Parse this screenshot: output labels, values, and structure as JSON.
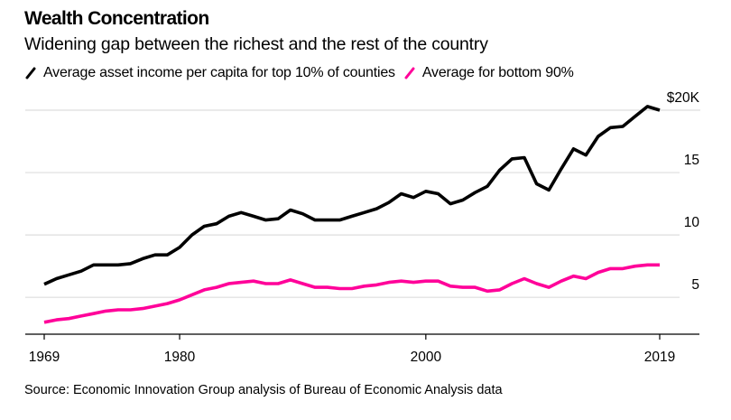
{
  "header": {
    "title": "Wealth Concentration",
    "subtitle": "Widening gap between the richest and the rest of the country"
  },
  "legend": [
    {
      "label": "Average asset income per capita for top 10% of counties",
      "color": "#000000",
      "icon": "line-swatch-icon"
    },
    {
      "label": "Average for bottom 90%",
      "color": "#ff0099",
      "icon": "line-swatch-icon"
    }
  ],
  "footer": {
    "source": "Source: Economic Innovation Group analysis of Bureau of Economic Analysis data"
  },
  "chart_data": {
    "type": "line",
    "title": "Wealth Concentration",
    "subtitle": "Widening gap between the richest and the rest of the country",
    "xlabel": "",
    "ylabel": "",
    "x": [
      1969,
      1970,
      1971,
      1972,
      1973,
      1974,
      1975,
      1976,
      1977,
      1978,
      1979,
      1980,
      1981,
      1982,
      1983,
      1984,
      1985,
      1986,
      1987,
      1988,
      1989,
      1990,
      1991,
      1992,
      1993,
      1994,
      1995,
      1996,
      1997,
      1998,
      1999,
      2000,
      2001,
      2002,
      2003,
      2004,
      2005,
      2006,
      2007,
      2008,
      2009,
      2010,
      2011,
      2012,
      2013,
      2014,
      2015,
      2016,
      2017,
      2018,
      2019
    ],
    "xlim": [
      1969,
      2019
    ],
    "x_ticks": [
      1969,
      1980,
      2000,
      2019
    ],
    "x_tick_labels": [
      "1969",
      "1980",
      "2000",
      "2019"
    ],
    "ylim": [
      2.1,
      21
    ],
    "y_ticks": [
      5,
      10,
      15,
      20
    ],
    "y_tick_labels": [
      "5",
      "10",
      "15",
      "$20K"
    ],
    "y_axis_side": "right",
    "grid": true,
    "legend_position": "top-left",
    "series": [
      {
        "name": "Average asset income per capita for top 10% of counties",
        "color": "#000000",
        "values": [
          6.05,
          6.5,
          6.8,
          7.1,
          7.6,
          7.6,
          7.6,
          7.7,
          8.1,
          8.4,
          8.4,
          9.0,
          10.0,
          10.7,
          10.9,
          11.5,
          11.8,
          11.5,
          11.2,
          11.3,
          12.0,
          11.7,
          11.2,
          11.2,
          11.2,
          11.5,
          11.8,
          12.1,
          12.6,
          13.3,
          13.0,
          13.5,
          13.3,
          12.5,
          12.8,
          13.4,
          13.9,
          15.2,
          16.1,
          16.2,
          14.1,
          13.6,
          15.3,
          16.9,
          16.4,
          17.9,
          18.6,
          18.7,
          19.5,
          20.3,
          20.0
        ]
      },
      {
        "name": "Average for bottom 90%",
        "color": "#ff0099",
        "values": [
          3.0,
          3.2,
          3.3,
          3.5,
          3.7,
          3.9,
          4.0,
          4.0,
          4.1,
          4.3,
          4.5,
          4.8,
          5.2,
          5.6,
          5.8,
          6.1,
          6.2,
          6.3,
          6.1,
          6.1,
          6.4,
          6.1,
          5.8,
          5.8,
          5.7,
          5.7,
          5.9,
          6.0,
          6.2,
          6.3,
          6.2,
          6.3,
          6.3,
          5.9,
          5.8,
          5.8,
          5.5,
          5.6,
          6.1,
          6.5,
          6.1,
          5.8,
          6.3,
          6.7,
          6.5,
          7.0,
          7.3,
          7.3,
          7.5,
          7.6,
          7.6
        ]
      }
    ]
  }
}
